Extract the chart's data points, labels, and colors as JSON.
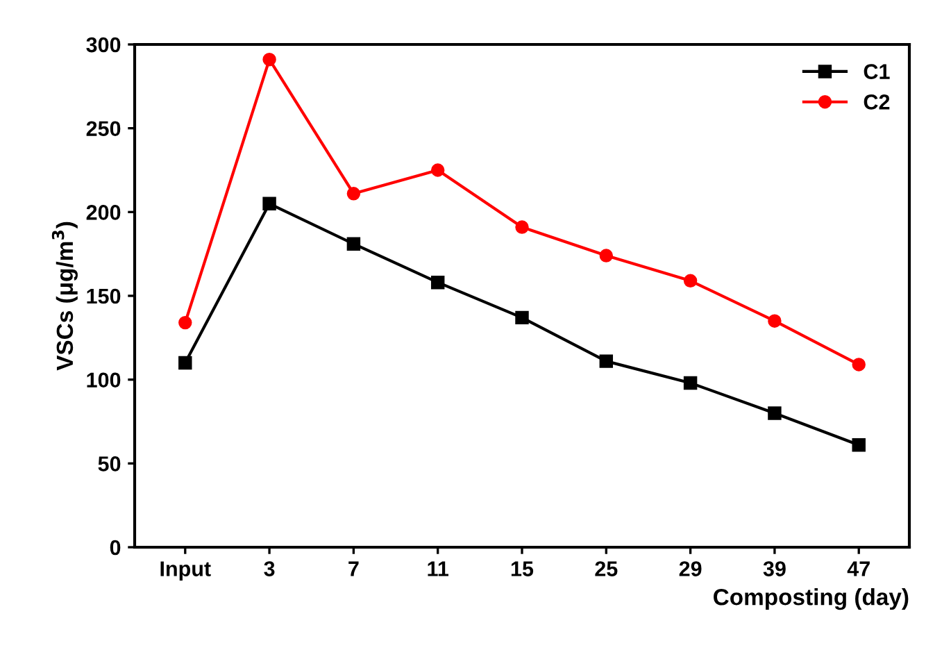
{
  "chart_data": {
    "type": "line",
    "categories": [
      "Input",
      "3",
      "7",
      "11",
      "15",
      "25",
      "29",
      "39",
      "47"
    ],
    "series": [
      {
        "name": "C1",
        "color": "#000000",
        "marker": "square",
        "values": [
          110,
          205,
          181,
          158,
          137,
          111,
          98,
          80,
          61
        ]
      },
      {
        "name": "C2",
        "color": "#ff0000",
        "marker": "circle",
        "values": [
          134,
          291,
          211,
          225,
          191,
          174,
          159,
          135,
          109
        ]
      }
    ],
    "xlabel": "Composting (day)",
    "ylabel": "VSCs (μg/m$^{3}$)",
    "ylim": [
      0,
      300
    ],
    "yticks": [
      0,
      50,
      100,
      150,
      200,
      250,
      300
    ],
    "legend": "top right",
    "grid": false,
    "line_style": "solid"
  }
}
